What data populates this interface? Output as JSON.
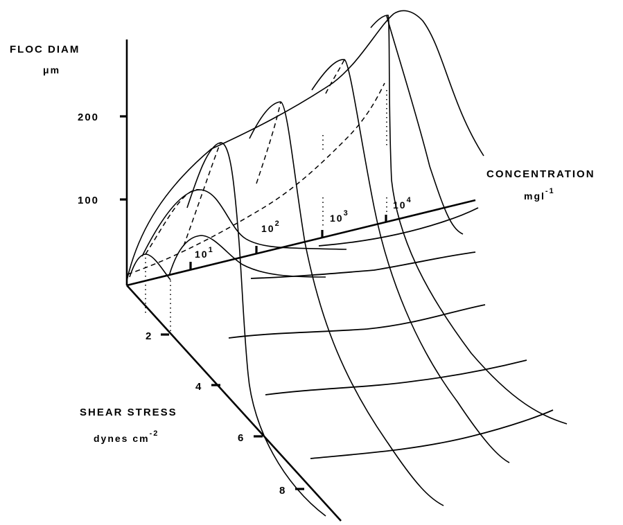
{
  "chart_data": {
    "type": "surface",
    "z_axis": {
      "label": "FLOC DIAM",
      "unit": "μm",
      "ticks": [
        "100",
        "200"
      ]
    },
    "y_axis": {
      "label": "SHEAR STRESS",
      "unit_base": "dynes cm",
      "unit_sup": "-2",
      "ticks": [
        "2",
        "4",
        "6",
        "8"
      ]
    },
    "x_axis": {
      "label": "CONCENTRATION",
      "unit_base": "mgl",
      "unit_sup": "-1",
      "ticks": [
        {
          "base": "10",
          "sup": "1"
        },
        {
          "base": "10",
          "sup": "2"
        },
        {
          "base": "10",
          "sup": "3"
        },
        {
          "base": "10",
          "sup": "4"
        }
      ]
    },
    "curves": [
      {
        "concentration_exp": 0,
        "peak_diam": 35,
        "peak_shear": 0.8
      },
      {
        "concentration_exp": 1,
        "peak_diam": 55,
        "peak_shear": 1.2
      },
      {
        "concentration_exp": 1.5,
        "peak_diam": 110,
        "peak_shear": 1.0
      },
      {
        "concentration_exp": 2,
        "peak_diam": 170,
        "peak_shear": 1.0
      },
      {
        "concentration_exp": 2.5,
        "peak_diam": 220,
        "peak_shear": 1.0
      },
      {
        "concentration_exp": 3,
        "peak_diam": 280,
        "peak_shear": 1.0
      },
      {
        "concentration_exp": 3.5,
        "peak_diam": 330,
        "peak_shear": 1.0
      }
    ],
    "grid": false,
    "legend": "none"
  }
}
